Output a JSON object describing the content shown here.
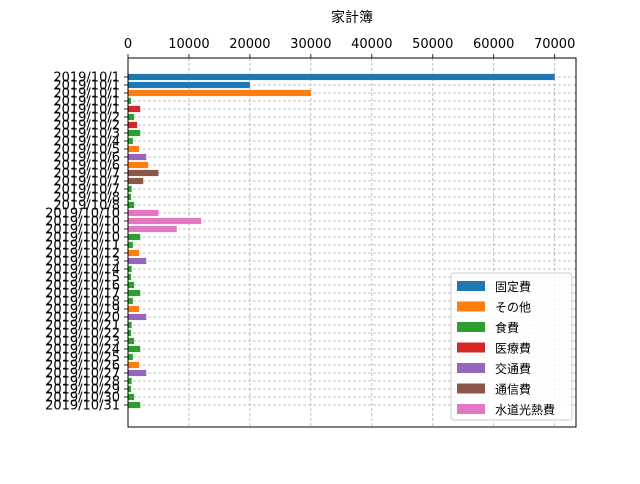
{
  "chart_data": {
    "type": "bar",
    "orientation": "horizontal",
    "title": "家計簿",
    "xlabel": "",
    "ylabel": "",
    "xlim": [
      0,
      73500
    ],
    "x_ticks": [
      0,
      10000,
      20000,
      30000,
      40000,
      50000,
      60000,
      70000
    ],
    "x_axis_position": "top",
    "grid": true,
    "legend_position": "lower-right",
    "series_colors": {
      "固定費": "#1f77b4",
      "その他": "#ff7f0e",
      "食費": "#2ca02c",
      "医療費": "#d62728",
      "交通費": "#9467bd",
      "通信費": "#8c564b",
      "水道光熱費": "#e377c2"
    },
    "legend": [
      "固定費",
      "その他",
      "食費",
      "医療費",
      "交通費",
      "通信費",
      "水道光熱費"
    ],
    "bars": [
      {
        "date": "2019/10/1",
        "category": "固定費",
        "value": 70000
      },
      {
        "date": "2019/10/1",
        "category": "固定費",
        "value": 20000
      },
      {
        "date": "2019/10/1",
        "category": "その他",
        "value": 30000
      },
      {
        "date": "2019/10/1",
        "category": "食費",
        "value": 500
      },
      {
        "date": "2019/10/1",
        "category": "医療費",
        "value": 2000
      },
      {
        "date": "2019/10/2",
        "category": "食費",
        "value": 1000
      },
      {
        "date": "2019/10/2",
        "category": "医療費",
        "value": 1500
      },
      {
        "date": "2019/10/3",
        "category": "食費",
        "value": 2000
      },
      {
        "date": "2019/10/4",
        "category": "食費",
        "value": 800
      },
      {
        "date": "2019/10/5",
        "category": "その他",
        "value": 1800
      },
      {
        "date": "2019/10/6",
        "category": "交通費",
        "value": 3000
      },
      {
        "date": "2019/10/6",
        "category": "その他",
        "value": 3300
      },
      {
        "date": "2019/10/7",
        "category": "通信費",
        "value": 5000
      },
      {
        "date": "2019/10/7",
        "category": "通信費",
        "value": 2500
      },
      {
        "date": "2019/10/7",
        "category": "食費",
        "value": 600
      },
      {
        "date": "2019/10/8",
        "category": "食費",
        "value": 500
      },
      {
        "date": "2019/10/8",
        "category": "食費",
        "value": 1000
      },
      {
        "date": "2019/10/10",
        "category": "水道光熱費",
        "value": 5000
      },
      {
        "date": "2019/10/10",
        "category": "水道光熱費",
        "value": 12000
      },
      {
        "date": "2019/10/10",
        "category": "水道光熱費",
        "value": 8000
      },
      {
        "date": "2019/10/10",
        "category": "食費",
        "value": 2000
      },
      {
        "date": "2019/10/11",
        "category": "食費",
        "value": 800
      },
      {
        "date": "2019/10/12",
        "category": "その他",
        "value": 1800
      },
      {
        "date": "2019/10/13",
        "category": "交通費",
        "value": 3000
      },
      {
        "date": "2019/10/14",
        "category": "食費",
        "value": 600
      },
      {
        "date": "2019/10/15",
        "category": "食費",
        "value": 500
      },
      {
        "date": "2019/10/16",
        "category": "食費",
        "value": 1000
      },
      {
        "date": "2019/10/17",
        "category": "食費",
        "value": 2000
      },
      {
        "date": "2019/10/18",
        "category": "食費",
        "value": 800
      },
      {
        "date": "2019/10/19",
        "category": "その他",
        "value": 1800
      },
      {
        "date": "2019/10/20",
        "category": "交通費",
        "value": 3000
      },
      {
        "date": "2019/10/21",
        "category": "食費",
        "value": 600
      },
      {
        "date": "2019/10/22",
        "category": "食費",
        "value": 500
      },
      {
        "date": "2019/10/23",
        "category": "食費",
        "value": 1000
      },
      {
        "date": "2019/10/24",
        "category": "食費",
        "value": 2000
      },
      {
        "date": "2019/10/25",
        "category": "食費",
        "value": 800
      },
      {
        "date": "2019/10/26",
        "category": "その他",
        "value": 1800
      },
      {
        "date": "2019/10/27",
        "category": "交通費",
        "value": 3000
      },
      {
        "date": "2019/10/28",
        "category": "食費",
        "value": 600
      },
      {
        "date": "2019/10/29",
        "category": "食費",
        "value": 500
      },
      {
        "date": "2019/10/30",
        "category": "食費",
        "value": 1000
      },
      {
        "date": "2019/10/31",
        "category": "食費",
        "value": 2000
      }
    ]
  }
}
